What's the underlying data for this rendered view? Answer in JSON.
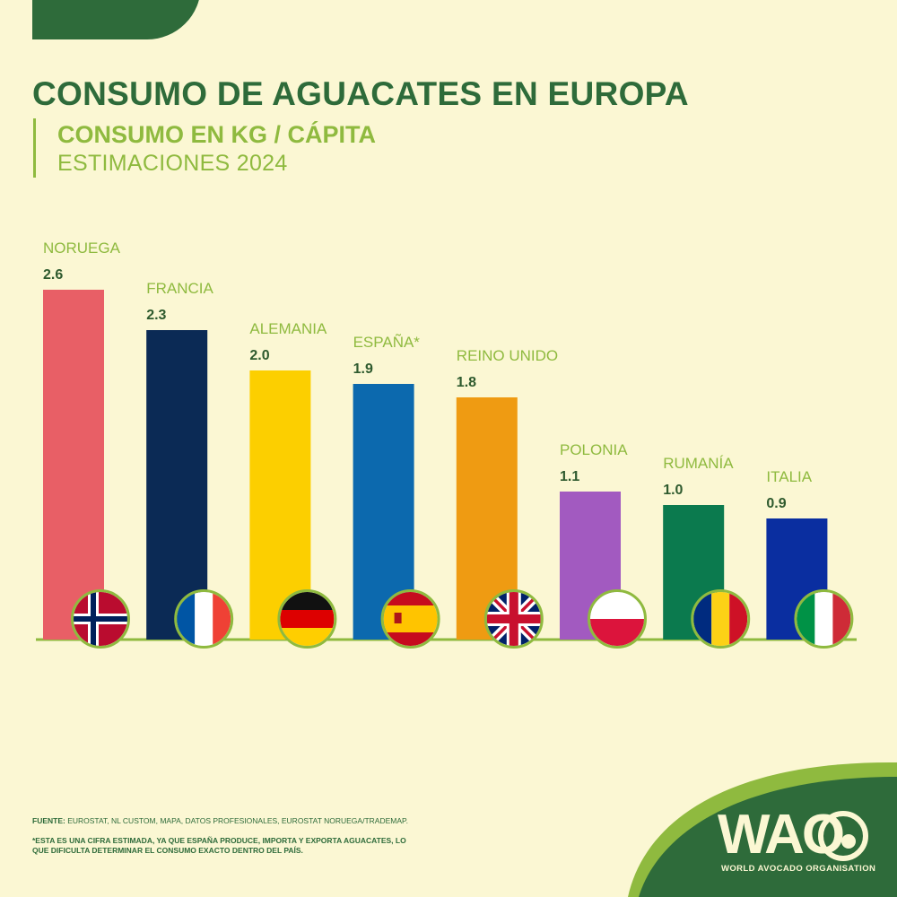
{
  "header": {
    "title": "CONSUMO DE AGUACATES EN EUROPA",
    "subtitle": "CONSUMO EN KG / CÁPITA",
    "subtitle2": "ESTIMACIONES 2024"
  },
  "chart_data": {
    "type": "bar",
    "title": "CONSUMO DE AGUACATES EN EUROPA",
    "categories": [
      "NORUEGA",
      "FRANCIA",
      "ALEMANIA",
      "ESPAÑA*",
      "REINO UNIDO",
      "POLONIA",
      "RUMANÍA",
      "ITALIA"
    ],
    "values": [
      2.6,
      2.3,
      2.0,
      1.9,
      1.8,
      1.1,
      1.0,
      0.9
    ],
    "value_labels": [
      "2.6",
      "2.3",
      "2.0",
      "1.9",
      "1.8",
      "1.1",
      "1.0",
      "0.9"
    ],
    "bar_colors": [
      "#e85f66",
      "#0b2a55",
      "#fccf00",
      "#0c69ae",
      "#ef9b12",
      "#a25ac0",
      "#0b7a4e",
      "#0a2ea0"
    ],
    "flags": [
      "norway-flag",
      "france-flag",
      "germany-flag",
      "spain-flag",
      "uk-flag",
      "poland-flag",
      "romania-flag",
      "italy-flag"
    ],
    "xlabel": "",
    "ylabel": "",
    "ylim": [
      0,
      2.6
    ],
    "grid": false,
    "legend": "none"
  },
  "footer": {
    "source_label": "FUENTE:",
    "source_text": " EUROSTAT, NL CUSTOM, MAPA, DATOS PROFESIONALES, EUROSTAT NORUEGA/TRADEMAP.",
    "note": "*ESTA ES UNA CIFRA ESTIMADA, YA QUE ESPAÑA PRODUCE, IMPORTA Y EXPORTA AGUACATES, LO QUE DIFICULTA DETERMINAR EL CONSUMO EXACTO DENTRO DEL PAÍS."
  },
  "logo": {
    "text": "WAO",
    "tagline": "WORLD AVOCADO ORGANISATION"
  },
  "colors": {
    "background": "#fbf7d3",
    "dark_green": "#2e6b3a",
    "light_green": "#8fba3f",
    "value_text": "#2e5a2e"
  }
}
